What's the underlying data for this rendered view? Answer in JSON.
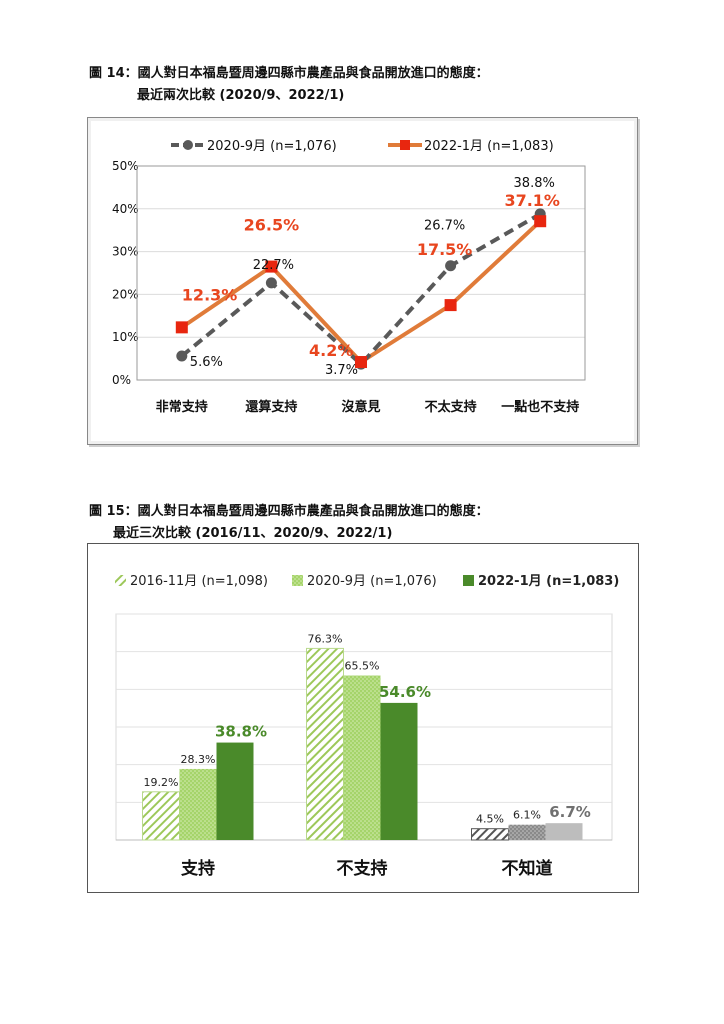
{
  "fig14": {
    "title_line1": "圖 14：國人對日本福島暨周邊四縣市農產品與食品開放進口的態度：",
    "title_line2": "最近兩次比較 (2020/9、2022/1)"
  },
  "fig15": {
    "title_line1": "圖 15：國人對日本福島暨周邊四縣市農產品與食品開放進口的態度：",
    "title_line2": "最近三次比較 (2016/11、2020/9、2022/1)"
  },
  "chart_data": [
    {
      "type": "line",
      "categories": [
        "非常支持",
        "還算支持",
        "沒意見",
        "不太支持",
        "一點也不支持"
      ],
      "y_ticks": [
        "0%",
        "10%",
        "20%",
        "30%",
        "40%",
        "50%"
      ],
      "ylim": [
        0,
        50
      ],
      "grid": true,
      "legend_position": "top",
      "series": [
        {
          "name": "2020-9月 (n=1,076)",
          "values": [
            5.6,
            22.7,
            3.7,
            26.7,
            38.8
          ],
          "labels": [
            "5.6%",
            "22.7%",
            "3.7%",
            "26.7%",
            "38.8%"
          ],
          "color": "#595959",
          "style": "dashed"
        },
        {
          "name": "2022-1月 (n=1,083)",
          "values": [
            12.3,
            26.5,
            4.2,
            17.5,
            37.1
          ],
          "labels": [
            "12.3%",
            "26.5%",
            "4.2%",
            "17.5%",
            "37.1%"
          ],
          "color": "#e07b39",
          "marker_color": "#e8260f",
          "label_color": "#e8461f",
          "style": "solid"
        }
      ]
    },
    {
      "type": "bar",
      "categories": [
        "支持",
        "不支持",
        "不知道"
      ],
      "ylim": [
        0,
        90
      ],
      "grid": true,
      "legend_position": "top",
      "series": [
        {
          "name": "2016-11月 (n=1,098)",
          "values": [
            19.2,
            76.3,
            4.5
          ],
          "labels": [
            "19.2%",
            "76.3%",
            "4.5%"
          ],
          "fill": "hatch",
          "color": "#9dc85a",
          "last_color": "#555555"
        },
        {
          "name": "2020-9月 (n=1,076)",
          "values": [
            28.3,
            65.5,
            6.1
          ],
          "labels": [
            "28.3%",
            "65.5%",
            "6.1%"
          ],
          "fill": "dotted",
          "color": "#a5d46a",
          "last_color": "#8a8a8a"
        },
        {
          "name": "2022-1月 (n=1,083)",
          "values": [
            38.8,
            54.6,
            6.7
          ],
          "labels": [
            "38.8%",
            "54.6%",
            "6.7%"
          ],
          "fill": "solid",
          "color": "#4a8a2a",
          "last_color": "#bdbdbd",
          "label_color": "#4a8a2a",
          "last_label_color": "#707070"
        }
      ]
    }
  ]
}
